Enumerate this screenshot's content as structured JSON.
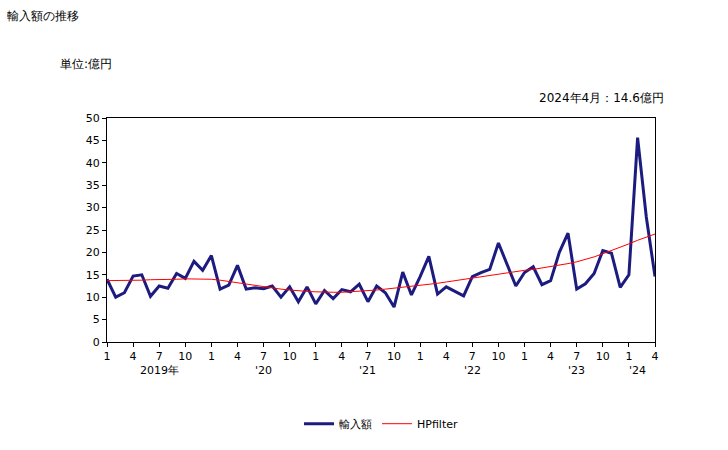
{
  "chart_data": {
    "type": "line",
    "title": "輸入額の推移",
    "y_label": "単位:億円",
    "subtitle": "2024年4月：14.6億円",
    "categories": [
      "1",
      null,
      null,
      "4",
      null,
      null,
      "7",
      null,
      null,
      "10",
      null,
      null,
      "1",
      null,
      null,
      "4",
      null,
      null,
      "7",
      null,
      null,
      "10",
      null,
      null,
      "1",
      null,
      null,
      "4",
      null,
      null,
      "7",
      null,
      null,
      "10",
      null,
      null,
      "1",
      null,
      null,
      "4",
      null,
      null,
      "7",
      null,
      null,
      "10",
      null,
      null,
      "1",
      null,
      null,
      "4",
      null,
      null,
      "7",
      null,
      null,
      "10",
      null,
      null,
      "1",
      null,
      null,
      "4"
    ],
    "annotations": [
      {
        "x": 6,
        "text": "2019年"
      },
      {
        "x": 18,
        "text": "'20"
      },
      {
        "x": 30,
        "text": "'21"
      },
      {
        "x": 42,
        "text": "'22"
      },
      {
        "x": 54,
        "text": "'23"
      },
      {
        "x": 61,
        "text": "'24"
      }
    ],
    "series": [
      {
        "name": "輸入額",
        "color": "#1c1c80",
        "line_style": "solid",
        "values": [
          14,
          10,
          11,
          14.7,
          15,
          10.2,
          12.5,
          12,
          15.3,
          14.2,
          18,
          16,
          19.3,
          11.8,
          12.7,
          17.1,
          11.8,
          12.1,
          11.9,
          12.5,
          10,
          12.3,
          9,
          12.3,
          8.5,
          11.5,
          9.7,
          11.7,
          11.2,
          12.9,
          9,
          12.5,
          11,
          7.8,
          15.6,
          10.5,
          14.6,
          19.1,
          10.7,
          12.3,
          11.3,
          10.3,
          14.6,
          15.5,
          16.2,
          22.1,
          17.3,
          12.5,
          15.5,
          16.8,
          12.8,
          13.7,
          20,
          24.3,
          11.8,
          13,
          15.3,
          20.4,
          19.8,
          12.2,
          15,
          45.6,
          27.9,
          14.6
        ]
      },
      {
        "name": "HPfilter",
        "color": "#ff0000",
        "line_style": "solid",
        "values": [
          13.7,
          13.7,
          13.7,
          13.8,
          13.8,
          13.9,
          13.9,
          14.0,
          14.0,
          14.1,
          14.1,
          14.1,
          14.0,
          13.8,
          13.5,
          13.2,
          12.9,
          12.6,
          12.3,
          12.0,
          11.8,
          11.6,
          11.4,
          11.3,
          11.2,
          11.1,
          11.1,
          11.1,
          11.2,
          11.3,
          11.4,
          11.6,
          11.8,
          12.0,
          12.2,
          12.4,
          12.6,
          12.8,
          13.1,
          13.4,
          13.7,
          14.0,
          14.3,
          14.6,
          14.9,
          15.2,
          15.5,
          15.7,
          16.0,
          16.2,
          16.5,
          16.8,
          17.1,
          17.5,
          17.9,
          18.4,
          19.0,
          19.7,
          20.4,
          21.1,
          21.9,
          22.7,
          23.4,
          24.1
        ]
      }
    ],
    "ylim": [
      0,
      50
    ],
    "yticks": [
      0,
      5,
      10,
      15,
      20,
      25,
      30,
      35,
      40,
      45,
      50
    ],
    "grid": false,
    "legend": "bottom"
  }
}
